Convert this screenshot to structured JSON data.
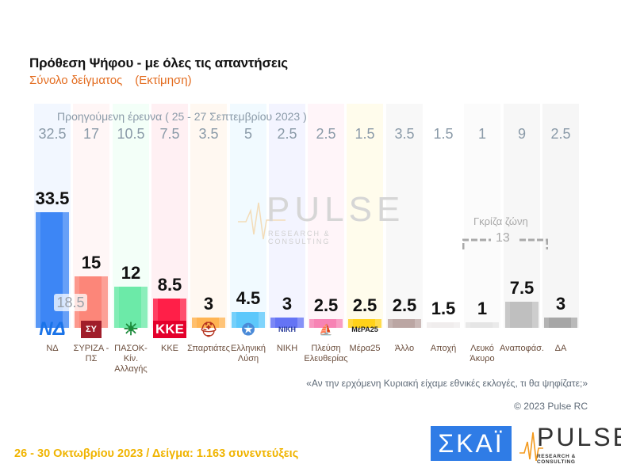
{
  "header": {
    "title": "Πρόθεση Ψήφου - με όλες τις απαντήσεις",
    "subtitle_main": "Σύνολο δείγματος",
    "subtitle_note": "(Εκτίμηση)"
  },
  "previous_survey_caption": "Προηγούμενη έρευνα  ( 25 - 27 Σεπτεμβρίου 2023 )",
  "nd_prev_badge": "18.5",
  "watermark": {
    "word": "PULSE",
    "sub": "RESEARCH & CONSULTING"
  },
  "gray_zone": {
    "label": "Γκρίζα ζώνη",
    "value": "13"
  },
  "question": "«Αν την ερχόμενη Κυριακή είχαμε εθνικές εκλογές, τι θα ψηφίζατε;»",
  "copyright": "© 2023 Pulse RC",
  "footer": "26 - 30  Οκτωβρίου  2023  /  Δείγμα:  1.163 συνεντεύξεις",
  "logos": {
    "skai": "ΣΚΑΪ",
    "pulse": "PULSE",
    "pulse_sub": "RESEARCH & CONSULTING"
  },
  "parties": [
    {
      "label": "ΝΔ",
      "value": "33.5",
      "prev": "32.5",
      "color": "#3d86f5",
      "bg": "#f2f7ff",
      "logo": "ΝΔ"
    },
    {
      "label": "ΣΥΡΙΖΑ - ΠΣ",
      "value": "15",
      "prev": "17",
      "color": "#fc8679",
      "bg": "#fff6f6",
      "logo": "ΣΥ"
    },
    {
      "label": "ΠΑΣΟΚ-Κίν. Αλλαγής",
      "value": "12",
      "prev": "10.5",
      "color": "#6ceaa8",
      "bg": "#f3fff8",
      "logo": "☀"
    },
    {
      "label": "ΚΚΕ",
      "value": "8.5",
      "prev": "7.5",
      "color": "#ff1f48",
      "bg": "#fff0f3",
      "logo": "ΚΚΕ"
    },
    {
      "label": "Σπαρτιάτες",
      "value": "3",
      "prev": "3.5",
      "color": "#ffb453",
      "bg": "#fff8f1",
      "logo": "⛑"
    },
    {
      "label": "Ελληνική Λύση",
      "value": "4.5",
      "prev": "5",
      "color": "#5cc8fb",
      "bg": "#f1faff",
      "logo": "✪"
    },
    {
      "label": "ΝΙΚΗ",
      "value": "3",
      "prev": "2.5",
      "color": "#6474f5",
      "bg": "#f3f4ff",
      "logo": "ΝΙΚΗ"
    },
    {
      "label": "Πλεύση Ελευθερίας",
      "value": "2.5",
      "prev": "2.5",
      "color": "#f783b4",
      "bg": "#fff5f9",
      "logo": "⛵"
    },
    {
      "label": "Μέρα25",
      "value": "2.5",
      "prev": "1.5",
      "color": "#ffd21a",
      "bg": "#fffcec",
      "logo": "ΜέΡΑ25"
    },
    {
      "label": "Άλλο",
      "value": "2.5",
      "prev": "3.5",
      "color": "#bba6a3",
      "bg": "#f8f8f8",
      "logo": ""
    },
    {
      "label": "Αποχή",
      "value": "1.5",
      "prev": "1.5",
      "color": "#f0eded",
      "bg": "#ffffff",
      "logo": ""
    },
    {
      "label": "Λευκό Άκυρο",
      "value": "1",
      "prev": "1",
      "color": "#e5e5e5",
      "bg": "#fbfbfb",
      "logo": ""
    },
    {
      "label": "Αναποφάσ.",
      "value": "7.5",
      "prev": "9",
      "color": "#bfbfbf",
      "bg": "#f7f7f7",
      "logo": ""
    },
    {
      "label": "ΔΑ",
      "value": "3",
      "prev": "2.5",
      "color": "#a6a6a6",
      "bg": "#f6f6f6",
      "logo": ""
    }
  ],
  "chart_data": {
    "type": "bar",
    "title": "Πρόθεση Ψήφου - με όλες τις απαντήσεις",
    "subtitle": "Σύνολο δείγματος (Εκτίμηση)",
    "categories": [
      "ΝΔ",
      "ΣΥΡΙΖΑ - ΠΣ",
      "ΠΑΣΟΚ-Κίν. Αλλαγής",
      "ΚΚΕ",
      "Σπαρτιάτες",
      "Ελληνική Λύση",
      "ΝΙΚΗ",
      "Πλεύση Ελευθερίας",
      "Μέρα25",
      "Άλλο",
      "Αποχή",
      "Λευκό Άκυρο",
      "Αναποφάσ.",
      "ΔΑ"
    ],
    "series": [
      {
        "name": "26 - 30 Οκτωβρίου 2023",
        "values": [
          33.5,
          15,
          12,
          8.5,
          3,
          4.5,
          3,
          2.5,
          2.5,
          2.5,
          1.5,
          1,
          7.5,
          3
        ]
      },
      {
        "name": "Προηγούμενη έρευνα (25 - 27 Σεπτεμβρίου 2023)",
        "values": [
          32.5,
          17,
          10.5,
          7.5,
          3.5,
          5,
          2.5,
          2.5,
          1.5,
          3.5,
          1.5,
          1,
          9,
          2.5
        ]
      }
    ],
    "annotations": [
      "ΝΔ previous-badge 18.5 (lead margin)",
      "Γκρίζα ζώνη 13 (Λευκό Άκυρο + Αναποφάσ. + ΔΑ... bracket)"
    ],
    "xlabel": "",
    "ylabel": "",
    "ylim": [
      0,
      35
    ],
    "grid": false,
    "legend": "none"
  }
}
